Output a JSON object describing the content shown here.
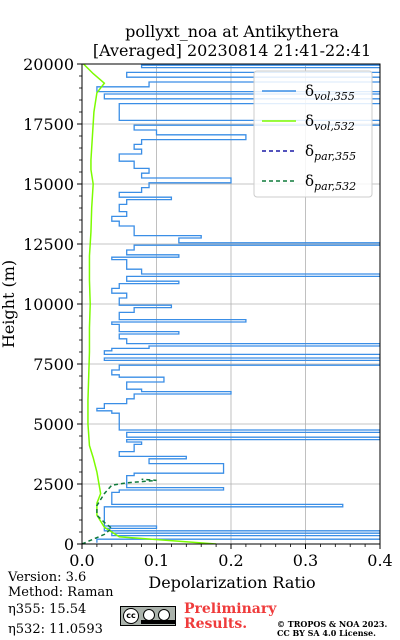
{
  "header": {
    "title_line1": "pollyxt_noa at Antikythera",
    "title_line2": "[Averaged] 20230814 21:41-22:41"
  },
  "info": {
    "version": "Version: 3.6",
    "method": "Method: Raman",
    "eta355": "η355:  15.54",
    "eta532": "η532: 11.0593"
  },
  "footer": {
    "preliminary_line1": "Preliminary",
    "preliminary_line2": "Results.",
    "copyright_line1": "© TROPOS & NOA 2023.",
    "copyright_line2": "CC BY SA 4.0 License."
  },
  "colors": {
    "vol355": "#3a8ee6",
    "vol532": "#7cfc00",
    "par355": "#1a1aa6",
    "par532": "#0f7a3a",
    "preliminary": "#ef3b3b"
  },
  "chart_data": {
    "type": "line",
    "xlabel": "Depolarization Ratio",
    "ylabel": "Height (m)",
    "xlim": [
      0.0,
      0.4
    ],
    "ylim": [
      0,
      20000
    ],
    "xticks": [
      0.0,
      0.1,
      0.2,
      0.3,
      0.4
    ],
    "xtick_labels": [
      "0.0",
      "0.1",
      "0.2",
      "0.3",
      "0.4"
    ],
    "yticks": [
      0,
      2500,
      5000,
      7500,
      10000,
      12500,
      15000,
      17500,
      20000
    ],
    "ytick_labels": [
      "0",
      "2500",
      "5000",
      "7500",
      "10000",
      "12500",
      "15000",
      "17500",
      "20000"
    ],
    "grid": true,
    "legend_position": "top-right",
    "series": [
      {
        "name": "δvol,355",
        "label_main": "δ",
        "label_sub": "vol,355",
        "style": "solid",
        "points": [
          [
            0.02,
            50
          ],
          [
            0.4,
            200
          ],
          [
            0.04,
            350
          ],
          [
            0.4,
            450
          ],
          [
            0.03,
            550
          ],
          [
            0.1,
            650
          ],
          [
            0.03,
            750
          ],
          [
            0.03,
            1450
          ],
          [
            0.35,
            1550
          ],
          [
            0.04,
            1650
          ],
          [
            0.05,
            2150
          ],
          [
            0.19,
            2250
          ],
          [
            0.06,
            2350
          ],
          [
            0.07,
            2850
          ],
          [
            0.19,
            2950
          ],
          [
            0.19,
            3250
          ],
          [
            0.09,
            3350
          ],
          [
            0.14,
            3550
          ],
          [
            0.05,
            3650
          ],
          [
            0.07,
            3850
          ],
          [
            0.08,
            4150
          ],
          [
            0.06,
            4250
          ],
          [
            0.4,
            4350
          ],
          [
            0.06,
            4450
          ],
          [
            0.06,
            4550
          ],
          [
            0.4,
            4650
          ],
          [
            0.05,
            4750
          ],
          [
            0.04,
            5450
          ],
          [
            0.02,
            5550
          ],
          [
            0.03,
            5650
          ],
          [
            0.06,
            5850
          ],
          [
            0.07,
            6050
          ],
          [
            0.2,
            6250
          ],
          [
            0.08,
            6350
          ],
          [
            0.06,
            6450
          ],
          [
            0.11,
            6750
          ],
          [
            0.05,
            6950
          ],
          [
            0.04,
            7050
          ],
          [
            0.05,
            7250
          ],
          [
            0.4,
            7450
          ],
          [
            0.03,
            7650
          ],
          [
            0.4,
            7750
          ],
          [
            0.03,
            7900
          ],
          [
            0.04,
            8050
          ],
          [
            0.09,
            8150
          ],
          [
            0.4,
            8250
          ],
          [
            0.06,
            8350
          ],
          [
            0.05,
            8550
          ],
          [
            0.13,
            8750
          ],
          [
            0.05,
            8850
          ],
          [
            0.04,
            9150
          ],
          [
            0.22,
            9250
          ],
          [
            0.05,
            9350
          ],
          [
            0.07,
            9650
          ],
          [
            0.12,
            9850
          ],
          [
            0.05,
            9950
          ],
          [
            0.06,
            10250
          ],
          [
            0.04,
            10450
          ],
          [
            0.05,
            10650
          ],
          [
            0.13,
            10850
          ],
          [
            0.06,
            10950
          ],
          [
            0.4,
            11150
          ],
          [
            0.08,
            11250
          ],
          [
            0.06,
            11450
          ],
          [
            0.04,
            11850
          ],
          [
            0.13,
            11950
          ],
          [
            0.06,
            12050
          ],
          [
            0.07,
            12250
          ],
          [
            0.4,
            12450
          ],
          [
            0.13,
            12550
          ],
          [
            0.16,
            12750
          ],
          [
            0.07,
            12850
          ],
          [
            0.07,
            13050
          ],
          [
            0.05,
            13250
          ],
          [
            0.04,
            13450
          ],
          [
            0.06,
            13650
          ],
          [
            0.05,
            13850
          ],
          [
            0.06,
            14150
          ],
          [
            0.12,
            14350
          ],
          [
            0.05,
            14450
          ],
          [
            0.08,
            14650
          ],
          [
            0.09,
            14850
          ],
          [
            0.2,
            15050
          ],
          [
            0.08,
            15250
          ],
          [
            0.09,
            15450
          ],
          [
            0.07,
            15650
          ],
          [
            0.05,
            15950
          ],
          [
            0.08,
            16250
          ],
          [
            0.07,
            16450
          ],
          [
            0.08,
            16650
          ],
          [
            0.22,
            16850
          ],
          [
            0.1,
            17050
          ],
          [
            0.07,
            17250
          ],
          [
            0.4,
            17450
          ],
          [
            0.05,
            17650
          ],
          [
            0.4,
            18350
          ],
          [
            0.03,
            18550
          ],
          [
            0.4,
            18750
          ],
          [
            0.02,
            18850
          ],
          [
            0.09,
            19050
          ],
          [
            0.4,
            19250
          ],
          [
            0.06,
            19450
          ],
          [
            0.4,
            19650
          ],
          [
            0.08,
            19850
          ],
          [
            0.4,
            19950
          ]
        ]
      },
      {
        "name": "δvol,532",
        "label_main": "δ",
        "label_sub": "vol,532",
        "style": "solid",
        "points": [
          [
            0.18,
            0
          ],
          [
            0.05,
            300
          ],
          [
            0.03,
            700
          ],
          [
            0.02,
            1200
          ],
          [
            0.02,
            1700
          ],
          [
            0.025,
            2100
          ],
          [
            0.02,
            3000
          ],
          [
            0.015,
            3600
          ],
          [
            0.01,
            4100
          ],
          [
            0.008,
            5000
          ],
          [
            0.008,
            6000
          ],
          [
            0.009,
            7000
          ],
          [
            0.01,
            8000
          ],
          [
            0.01,
            9000
          ],
          [
            0.011,
            10000
          ],
          [
            0.01,
            11000
          ],
          [
            0.01,
            12000
          ],
          [
            0.012,
            13000
          ],
          [
            0.013,
            14000
          ],
          [
            0.015,
            15000
          ],
          [
            0.012,
            15600
          ],
          [
            0.012,
            16000
          ],
          [
            0.014,
            17000
          ],
          [
            0.016,
            18000
          ],
          [
            0.02,
            18800
          ],
          [
            0.03,
            19200
          ],
          [
            0.015,
            19600
          ],
          [
            0.002,
            20000
          ]
        ]
      },
      {
        "name": "δpar,355",
        "label_main": "δ",
        "label_sub": "par,355",
        "style": "dashed",
        "points": []
      },
      {
        "name": "δpar,532",
        "label_main": "δ",
        "label_sub": "par,532",
        "style": "dashed",
        "points": [
          [
            0.0,
            0
          ],
          [
            0.03,
            400
          ],
          [
            0.04,
            650
          ],
          [
            0.03,
            900
          ],
          [
            0.02,
            1200
          ],
          [
            0.02,
            1600
          ],
          [
            0.03,
            2100
          ],
          [
            0.04,
            2450
          ],
          [
            0.06,
            2550
          ],
          [
            0.1,
            2650
          ],
          [
            0.08,
            2700
          ]
        ]
      }
    ]
  }
}
